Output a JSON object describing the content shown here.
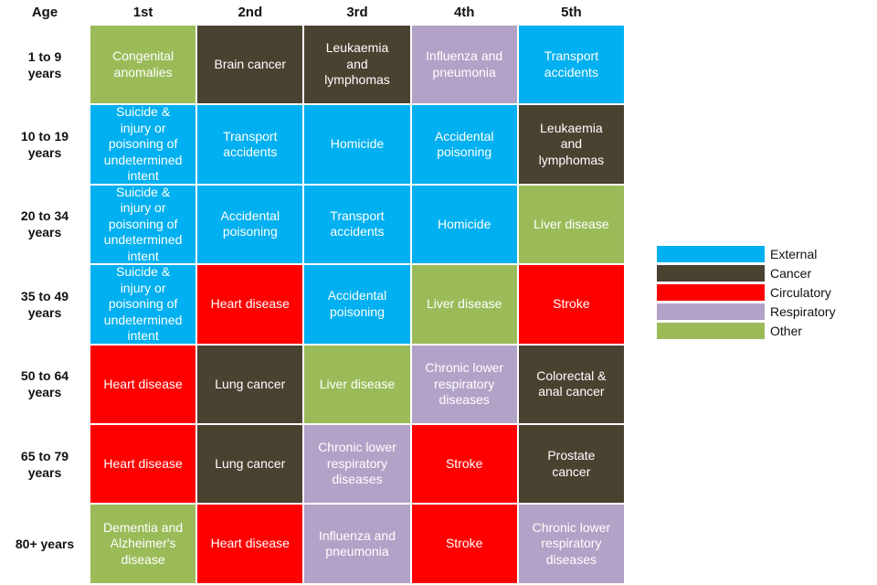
{
  "chart_data": {
    "type": "table",
    "corner_label": "Age",
    "columns": [
      "1st",
      "2nd",
      "3rd",
      "4th",
      "5th"
    ],
    "rows": [
      {
        "age": "1 to 9\nyears",
        "cells": [
          {
            "text": "Congenital\nanomalies",
            "category": "Other"
          },
          {
            "text": "Brain cancer",
            "category": "Cancer"
          },
          {
            "text": "Leukaemia\nand\nlymphomas",
            "category": "Cancer"
          },
          {
            "text": "Influenza and\npneumonia",
            "category": "Respiratory"
          },
          {
            "text": "Transport\naccidents",
            "category": "External"
          }
        ]
      },
      {
        "age": "10 to 19\nyears",
        "cells": [
          {
            "text": "Suicide &\ninjury or\npoisoning of\nundetermined\nintent",
            "category": "External"
          },
          {
            "text": "Transport\naccidents",
            "category": "External"
          },
          {
            "text": "Homicide",
            "category": "External"
          },
          {
            "text": "Accidental\npoisoning",
            "category": "External"
          },
          {
            "text": "Leukaemia\nand\nlymphomas",
            "category": "Cancer"
          }
        ]
      },
      {
        "age": "20 to 34\nyears",
        "cells": [
          {
            "text": "Suicide &\ninjury or\npoisoning of\nundetermined\nintent",
            "category": "External"
          },
          {
            "text": "Accidental\npoisoning",
            "category": "External"
          },
          {
            "text": "Transport\naccidents",
            "category": "External"
          },
          {
            "text": "Homicide",
            "category": "External"
          },
          {
            "text": "Liver disease",
            "category": "Other"
          }
        ]
      },
      {
        "age": "35 to 49\nyears",
        "cells": [
          {
            "text": "Suicide &\ninjury or\npoisoning of\nundetermined\nintent",
            "category": "External"
          },
          {
            "text": "Heart disease",
            "category": "Circulatory"
          },
          {
            "text": "Accidental\npoisoning",
            "category": "External"
          },
          {
            "text": "Liver disease",
            "category": "Other"
          },
          {
            "text": "Stroke",
            "category": "Circulatory"
          }
        ]
      },
      {
        "age": "50 to 64\nyears",
        "cells": [
          {
            "text": "Heart disease",
            "category": "Circulatory"
          },
          {
            "text": "Lung cancer",
            "category": "Cancer"
          },
          {
            "text": "Liver disease",
            "category": "Other"
          },
          {
            "text": "Chronic lower\nrespiratory\ndiseases",
            "category": "Respiratory"
          },
          {
            "text": "Colorectal &\nanal cancer",
            "category": "Cancer"
          }
        ]
      },
      {
        "age": "65 to 79\nyears",
        "cells": [
          {
            "text": "Heart disease",
            "category": "Circulatory"
          },
          {
            "text": "Lung cancer",
            "category": "Cancer"
          },
          {
            "text": "Chronic lower\nrespiratory\ndiseases",
            "category": "Respiratory"
          },
          {
            "text": "Stroke",
            "category": "Circulatory"
          },
          {
            "text": "Prostate\ncancer",
            "category": "Cancer"
          }
        ]
      },
      {
        "age": "80+ years",
        "cells": [
          {
            "text": "Dementia and\nAlzheimer's\ndisease",
            "category": "Other"
          },
          {
            "text": "Heart disease",
            "category": "Circulatory"
          },
          {
            "text": "Influenza and\npneumonia",
            "category": "Respiratory"
          },
          {
            "text": "Stroke",
            "category": "Circulatory"
          },
          {
            "text": "Chronic lower\nrespiratory\ndiseases",
            "category": "Respiratory"
          }
        ]
      }
    ],
    "legend": [
      {
        "name": "External",
        "color": "#00b0f0"
      },
      {
        "name": "Cancer",
        "color": "#4a4231"
      },
      {
        "name": "Circulatory",
        "color": "#ff0000"
      },
      {
        "name": "Respiratory",
        "color": "#b2a2c7"
      },
      {
        "name": "Other",
        "color": "#9bbb59"
      }
    ],
    "legend_position": "right"
  }
}
